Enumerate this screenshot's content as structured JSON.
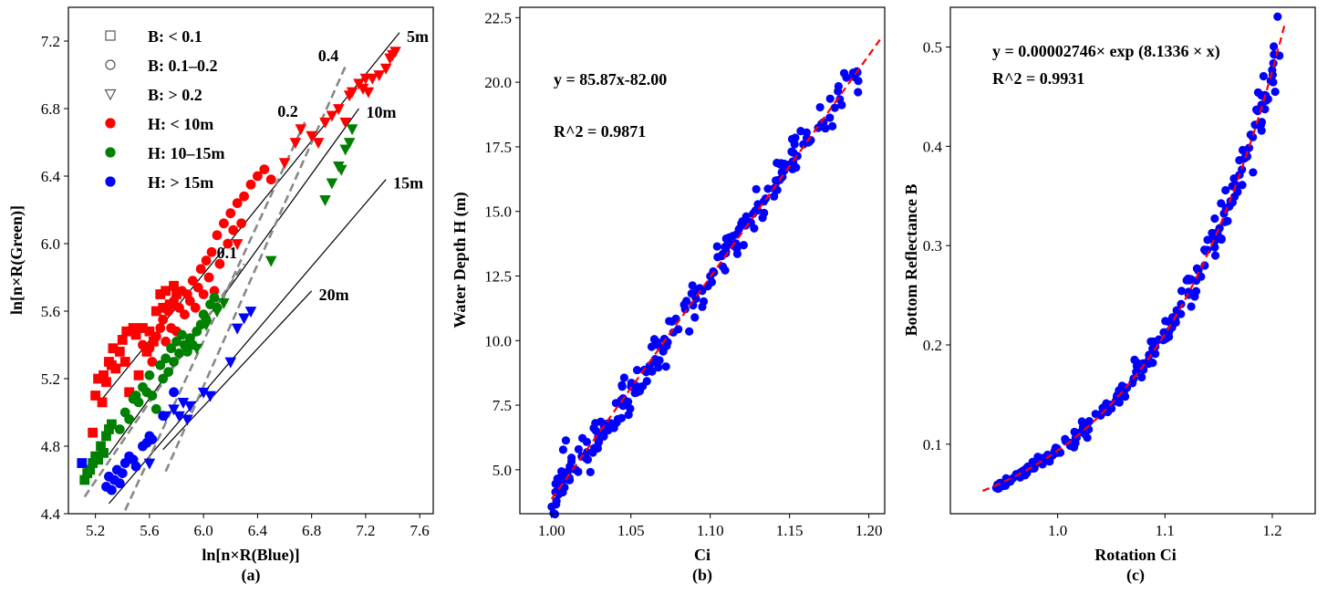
{
  "chart_data": [
    {
      "panel": "a",
      "type": "scatter",
      "caption": "(a)",
      "xlabel": "ln[n×R(Blue)]",
      "ylabel": "ln[n×R(Green)]",
      "xlim": [
        5.0,
        7.7
      ],
      "ylim": [
        4.4,
        7.4
      ],
      "xticks": [
        5.2,
        5.6,
        6.0,
        6.4,
        6.8,
        7.2,
        7.6
      ],
      "yticks": [
        4.4,
        4.8,
        5.2,
        5.6,
        6.0,
        6.4,
        6.8,
        7.2
      ],
      "legend": {
        "placement": "top-left",
        "entries": [
          {
            "marker": "square",
            "color": "#555555",
            "filled": false,
            "label": "B: < 0.1"
          },
          {
            "marker": "circle",
            "color": "#555555",
            "filled": false,
            "label": "B: 0.1–0.2"
          },
          {
            "marker": "triangle-down",
            "color": "#555555",
            "filled": false,
            "label": "B: > 0.2"
          },
          {
            "marker": "circle",
            "color": "#ff0000",
            "filled": true,
            "label": "H: < 10m"
          },
          {
            "marker": "circle",
            "color": "#008000",
            "filled": true,
            "label": "H: 10–15m"
          },
          {
            "marker": "circle",
            "color": "#0000ff",
            "filled": true,
            "label": "H: > 15m"
          }
        ]
      },
      "depth_lines": [
        {
          "label": "5m",
          "x": [
            5.25,
            7.45
          ],
          "y": [
            5.08,
            7.25
          ]
        },
        {
          "label": "10m",
          "x": [
            5.3,
            7.15
          ],
          "y": [
            4.75,
            6.8
          ]
        },
        {
          "label": "15m",
          "x": [
            5.3,
            7.35
          ],
          "y": [
            4.46,
            6.38
          ]
        },
        {
          "label": "20m",
          "x": [
            5.7,
            6.8
          ],
          "y": [
            4.78,
            5.72
          ]
        }
      ],
      "reflectance_lines": [
        {
          "label": "0.1",
          "x": [
            5.12,
            6.3
          ],
          "y": [
            4.5,
            5.88
          ]
        },
        {
          "label": "0.2",
          "x": [
            5.42,
            6.75
          ],
          "y": [
            4.42,
            6.72
          ]
        },
        {
          "label": "0.4",
          "x": [
            5.72,
            7.05
          ],
          "y": [
            4.65,
            7.05
          ]
        }
      ],
      "series": [
        {
          "name": "H<10m, B<0.1",
          "color": "#ff0000",
          "marker": "square",
          "x": [
            5.18,
            5.2,
            5.22,
            5.25,
            5.26,
            5.28,
            5.3,
            5.32,
            5.33,
            5.35,
            5.38,
            5.4,
            5.42,
            5.43,
            5.45,
            5.48,
            5.5,
            5.52,
            5.55,
            5.58,
            5.6,
            5.63,
            5.65,
            5.68,
            5.7,
            5.72,
            5.75,
            5.78,
            5.8
          ],
          "y": [
            4.88,
            5.1,
            5.2,
            5.06,
            5.22,
            5.18,
            5.3,
            5.28,
            5.38,
            5.26,
            5.36,
            5.43,
            5.3,
            5.48,
            5.12,
            5.5,
            5.46,
            5.22,
            5.5,
            5.36,
            5.48,
            5.42,
            5.6,
            5.7,
            5.62,
            5.72,
            5.64,
            5.75,
            5.7
          ]
        },
        {
          "name": "H<10m, B 0.1–0.2",
          "color": "#ff0000",
          "marker": "circle",
          "x": [
            5.55,
            5.6,
            5.62,
            5.65,
            5.68,
            5.7,
            5.72,
            5.74,
            5.76,
            5.78,
            5.8,
            5.82,
            5.84,
            5.86,
            5.88,
            5.9,
            5.92,
            5.94,
            5.96,
            5.98,
            6.0,
            6.02,
            6.04,
            6.06,
            6.08,
            6.1,
            6.12,
            6.15,
            6.18,
            6.2,
            6.22,
            6.25,
            6.28,
            6.3,
            6.35,
            6.4,
            6.45,
            6.5
          ],
          "y": [
            5.4,
            5.38,
            5.3,
            5.45,
            5.5,
            5.55,
            5.42,
            5.6,
            5.5,
            5.66,
            5.48,
            5.62,
            5.72,
            5.58,
            5.7,
            5.66,
            5.78,
            5.62,
            5.74,
            5.85,
            5.7,
            5.9,
            5.8,
            5.95,
            5.72,
            6.05,
            5.88,
            6.12,
            6.0,
            6.18,
            6.08,
            6.24,
            6.12,
            6.28,
            6.35,
            6.4,
            6.44,
            6.38
          ]
        },
        {
          "name": "H<10m, B>0.2",
          "color": "#ff0000",
          "marker": "triangle-down",
          "x": [
            6.25,
            6.6,
            6.68,
            6.72,
            6.8,
            6.85,
            6.9,
            6.95,
            7.0,
            7.05,
            7.08,
            7.1,
            7.15,
            7.18,
            7.2,
            7.22,
            7.25,
            7.3,
            7.35,
            7.38,
            7.4,
            7.42
          ],
          "y": [
            6.0,
            6.48,
            6.6,
            6.68,
            6.64,
            6.6,
            6.72,
            6.76,
            6.8,
            6.72,
            6.88,
            6.9,
            6.95,
            6.92,
            6.98,
            6.9,
            6.98,
            7.0,
            7.04,
            7.1,
            7.12,
            7.14
          ]
        },
        {
          "name": "H 10–15m, B<0.1",
          "color": "#008000",
          "marker": "square",
          "x": [
            5.12,
            5.14,
            5.16,
            5.18,
            5.2,
            5.22,
            5.24,
            5.26,
            5.28,
            5.3,
            5.32
          ],
          "y": [
            4.6,
            4.64,
            4.66,
            4.7,
            4.74,
            4.72,
            4.8,
            4.76,
            4.86,
            4.9,
            4.93
          ]
        },
        {
          "name": "H 10–15m, B 0.1–0.2",
          "color": "#008000",
          "marker": "circle",
          "x": [
            5.38,
            5.42,
            5.45,
            5.48,
            5.5,
            5.52,
            5.55,
            5.58,
            5.6,
            5.62,
            5.65,
            5.68,
            5.7,
            5.72,
            5.74,
            5.76,
            5.78,
            5.8,
            5.82,
            5.84,
            5.86,
            5.88,
            5.9,
            5.92,
            5.95,
            5.98,
            6.0,
            6.02,
            6.05,
            6.08,
            6.1
          ],
          "y": [
            4.9,
            5.0,
            4.96,
            5.08,
            5.1,
            5.06,
            5.15,
            5.12,
            5.22,
            5.1,
            5.02,
            5.28,
            5.2,
            5.32,
            5.24,
            5.38,
            5.3,
            5.42,
            5.35,
            5.46,
            5.4,
            5.36,
            5.44,
            5.4,
            5.48,
            5.52,
            5.58,
            5.55,
            5.64,
            5.68,
            5.62
          ]
        },
        {
          "name": "H 10–15m, B>0.2",
          "color": "#008000",
          "marker": "triangle-down",
          "x": [
            5.95,
            6.02,
            6.1,
            6.15,
            6.5,
            6.9,
            6.95,
            7.0,
            7.02,
            7.05,
            7.08,
            7.1
          ],
          "y": [
            5.38,
            5.52,
            5.6,
            5.65,
            5.9,
            6.26,
            6.36,
            6.46,
            6.44,
            6.56,
            6.6,
            6.68
          ]
        },
        {
          "name": "H>15m, B<0.1",
          "color": "#0000ff",
          "marker": "square",
          "x": [
            5.1
          ],
          "y": [
            4.7
          ]
        },
        {
          "name": "H>15m, B 0.1–0.2",
          "color": "#0000ff",
          "marker": "circle",
          "x": [
            5.28,
            5.3,
            5.32,
            5.34,
            5.36,
            5.38,
            5.4,
            5.42,
            5.45,
            5.48,
            5.5,
            5.55,
            5.58,
            5.6,
            5.62,
            5.7,
            5.78
          ],
          "y": [
            4.56,
            4.62,
            4.54,
            4.6,
            4.66,
            4.58,
            4.64,
            4.7,
            4.74,
            4.72,
            4.68,
            4.8,
            4.82,
            4.86,
            4.84,
            4.98,
            5.12
          ]
        },
        {
          "name": "H>15m, B>0.2",
          "color": "#0000ff",
          "marker": "triangle-down",
          "x": [
            5.6,
            5.72,
            5.78,
            5.82,
            5.85,
            5.88,
            5.9,
            6.0,
            6.05,
            6.2,
            6.25,
            6.3,
            6.35
          ],
          "y": [
            4.7,
            4.98,
            5.02,
            4.98,
            5.06,
            4.96,
            5.04,
            5.12,
            5.1,
            5.3,
            5.5,
            5.56,
            5.6
          ]
        }
      ]
    },
    {
      "panel": "b",
      "type": "scatter",
      "caption": "(b)",
      "xlabel": "Ci",
      "ylabel": "Water Depth H (m)",
      "xlim": [
        0.98,
        1.21
      ],
      "ylim": [
        3.3,
        22.9
      ],
      "xticks": [
        1.0,
        1.05,
        1.1,
        1.15,
        1.2
      ],
      "xtick_labels": [
        "1.00",
        "1.05",
        "1.10",
        "1.15",
        "1.20"
      ],
      "yticks": [
        5.0,
        7.5,
        10.0,
        12.5,
        15.0,
        17.5,
        20.0,
        22.5
      ],
      "ytick_labels": [
        "5.0",
        "7.5",
        "10.0",
        "12.5",
        "15.0",
        "17.5",
        "20.0",
        "22.5"
      ],
      "fit": {
        "equation": "y = 85.87x-82.00",
        "r2": "R^2 = 0.9871",
        "slope": 85.87,
        "intercept": -82.0,
        "color": "#ff0000",
        "style": "dashed"
      },
      "points_color": "#0000ff",
      "seed": 11,
      "n_points": 230
    },
    {
      "panel": "c",
      "type": "scatter",
      "caption": "(c)",
      "xlabel": "Rotation Ci",
      "ylabel": "Bottom Reflectance B",
      "xlim": [
        0.9,
        1.24
      ],
      "ylim": [
        0.03,
        0.54
      ],
      "xticks": [
        1.0,
        1.1,
        1.2
      ],
      "xtick_labels": [
        "1.0",
        "1.1",
        "1.2"
      ],
      "yticks": [
        0.1,
        0.2,
        0.3,
        0.4,
        0.5
      ],
      "ytick_labels": [
        "0.1",
        "0.2",
        "0.3",
        "0.4",
        "0.5"
      ],
      "fit": {
        "equation": "y = 0.00002746× exp (8.1336 × x)",
        "r2": "R^2 = 0.9931",
        "a": 2.746e-05,
        "b": 8.1336,
        "color": "#ff0000",
        "style": "dashed"
      },
      "points_color": "#0000ff",
      "seed": 29,
      "n_points": 230
    }
  ]
}
